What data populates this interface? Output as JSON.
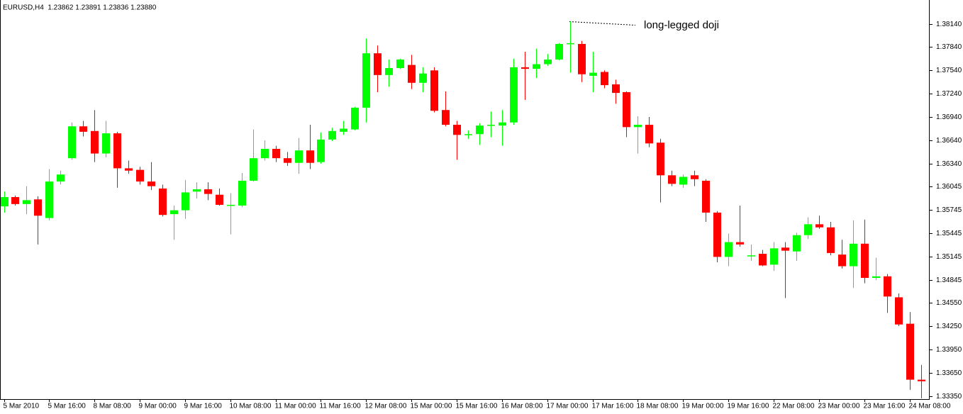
{
  "chart_data": {
    "type": "candlestick",
    "header": "EURUSD,H4  1.23862 1.23891 1.23836 1.23880",
    "annotation": "long-legged doji",
    "up_color": "#00ff00",
    "down_color": "#ff0000",
    "categories": [
      "5 Mar 2010",
      null,
      null,
      null,
      "5 Mar 16:00",
      null,
      null,
      null,
      "8 Mar 08:00",
      null,
      null,
      null,
      "9 Mar 00:00",
      null,
      null,
      null,
      "9 Mar 16:00",
      null,
      null,
      null,
      "10 Mar 08:00",
      null,
      null,
      null,
      "11 Mar 00:00",
      null,
      null,
      null,
      "11 Mar 16:00",
      null,
      null,
      null,
      "12 Mar 08:00",
      null,
      null,
      null,
      "15 Mar 00:00",
      null,
      null,
      null,
      "15 Mar 16:00",
      null,
      null,
      null,
      "16 Mar 08:00",
      null,
      null,
      null,
      "17 Mar 00:00",
      null,
      null,
      null,
      "17 Mar 16:00",
      null,
      null,
      null,
      "18 Mar 08:00",
      null,
      null,
      null,
      "19 Mar 00:00",
      null,
      null,
      null,
      "19 Mar 16:00",
      null,
      null,
      null,
      "22 Mar 08:00",
      null,
      null,
      null,
      "23 Mar 00:00",
      null,
      null,
      null,
      "23 Mar 16:00",
      null,
      null,
      null,
      "24 Mar 08:00",
      null
    ],
    "open": [
      1.3579,
      1.3591,
      1.3582,
      1.3588,
      1.3564,
      1.3611,
      1.3641,
      1.3682,
      1.3676,
      1.3647,
      1.3673,
      1.3628,
      1.3626,
      1.3611,
      1.3602,
      1.3569,
      1.3574,
      1.3598,
      1.3601,
      1.3594,
      1.358,
      1.358,
      1.3612,
      1.3641,
      1.3653,
      1.3641,
      1.3635,
      1.3651,
      1.3636,
      1.3665,
      1.3675,
      1.3678,
      1.3706,
      1.3776,
      1.3748,
      1.3757,
      1.3761,
      1.3738,
      1.3754,
      1.3703,
      1.3684,
      1.3671,
      1.3672,
      1.3683,
      1.3683,
      1.3687,
      1.3758,
      1.3756,
      1.3762,
      1.3768,
      1.3788,
      1.3788,
      1.3747,
      1.3752,
      1.3736,
      1.3726,
      1.3681,
      1.3684,
      1.3661,
      1.3619,
      1.3607,
      1.3619,
      1.3612,
      1.3571,
      1.3514,
      1.3533,
      1.3515,
      1.3518,
      1.3504,
      1.3526,
      1.3521,
      1.3542,
      1.3556,
      1.3552,
      1.3517,
      1.3502,
      1.3531,
      1.3487,
      1.3489,
      1.3462,
      1.3428,
      1.3356
    ],
    "high": [
      1.3598,
      1.3593,
      1.3605,
      1.3592,
      1.3627,
      1.3625,
      1.3687,
      1.3689,
      1.3703,
      1.3689,
      1.3675,
      1.3638,
      1.363,
      1.3636,
      1.3607,
      1.358,
      1.3613,
      1.361,
      1.361,
      1.3602,
      1.3596,
      1.3622,
      1.3678,
      1.3664,
      1.3657,
      1.3649,
      1.3667,
      1.3684,
      1.3674,
      1.368,
      1.3689,
      1.3707,
      1.3795,
      1.3786,
      1.3768,
      1.3769,
      1.3774,
      1.3758,
      1.3758,
      1.3727,
      1.3689,
      1.3677,
      1.3686,
      1.3701,
      1.3703,
      1.3769,
      1.3778,
      1.3782,
      1.3775,
      1.3789,
      1.3817,
      1.3792,
      1.3778,
      1.3754,
      1.3742,
      1.3727,
      1.3695,
      1.3694,
      1.3666,
      1.3625,
      1.362,
      1.3625,
      1.3614,
      1.3573,
      1.3544,
      1.358,
      1.353,
      1.3523,
      1.3533,
      1.3533,
      1.3545,
      1.3565,
      1.3567,
      1.3559,
      1.3536,
      1.3561,
      1.3562,
      1.3513,
      1.3492,
      1.3467,
      1.3443,
      1.3375
    ],
    "low": [
      1.3571,
      1.358,
      1.3569,
      1.353,
      1.3561,
      1.3607,
      1.3639,
      1.3669,
      1.3636,
      1.3642,
      1.3603,
      1.3621,
      1.3607,
      1.36,
      1.3566,
      1.3536,
      1.3563,
      1.3589,
      1.3587,
      1.358,
      1.3543,
      1.3578,
      1.3611,
      1.3638,
      1.3636,
      1.3631,
      1.3621,
      1.3627,
      1.3634,
      1.3663,
      1.3671,
      1.3677,
      1.3687,
      1.3726,
      1.3733,
      1.3756,
      1.373,
      1.3726,
      1.37,
      1.3682,
      1.3639,
      1.3666,
      1.3658,
      1.3668,
      1.3657,
      1.3684,
      1.3716,
      1.3744,
      1.376,
      1.3767,
      1.3751,
      1.3739,
      1.3726,
      1.3731,
      1.3711,
      1.3668,
      1.3647,
      1.3655,
      1.3584,
      1.3605,
      1.3603,
      1.3605,
      1.3559,
      1.3507,
      1.3502,
      1.3527,
      1.3509,
      1.3502,
      1.3496,
      1.3461,
      1.3509,
      1.3537,
      1.355,
      1.3516,
      1.3499,
      1.3474,
      1.348,
      1.3484,
      1.3442,
      1.3425,
      1.3343,
      1.3332
    ],
    "close": [
      1.3591,
      1.3582,
      1.3587,
      1.3567,
      1.3611,
      1.362,
      1.3682,
      1.3675,
      1.3647,
      1.3673,
      1.3628,
      1.3625,
      1.3611,
      1.3605,
      1.3568,
      1.3574,
      1.3597,
      1.3601,
      1.3595,
      1.3581,
      1.3581,
      1.3612,
      1.3641,
      1.3653,
      1.3641,
      1.3635,
      1.3651,
      1.3635,
      1.3665,
      1.3676,
      1.3679,
      1.3706,
      1.3776,
      1.3748,
      1.3757,
      1.3768,
      1.3738,
      1.375,
      1.3702,
      1.3684,
      1.3671,
      1.3672,
      1.3683,
      1.3684,
      1.3687,
      1.3758,
      1.3756,
      1.3762,
      1.3768,
      1.3788,
      1.3789,
      1.3749,
      1.3751,
      1.3735,
      1.3725,
      1.3681,
      1.3684,
      1.366,
      1.3619,
      1.3608,
      1.3617,
      1.3614,
      1.3571,
      1.3514,
      1.3533,
      1.353,
      1.3516,
      1.3503,
      1.3525,
      1.3522,
      1.3542,
      1.3556,
      1.3552,
      1.3519,
      1.3502,
      1.3531,
      1.3487,
      1.3489,
      1.3463,
      1.3427,
      1.3356,
      1.3354
    ],
    "ylim": [
      1.3331,
      1.384
    ],
    "yticks": [
      {
        "value": 1.3814,
        "label": "1.38140"
      },
      {
        "value": 1.3784,
        "label": "1.37840"
      },
      {
        "value": 1.3754,
        "label": "1.37540"
      },
      {
        "value": 1.3724,
        "label": "1.37240"
      },
      {
        "value": 1.3694,
        "label": "1.36940"
      },
      {
        "value": 1.3664,
        "label": "1.36640"
      },
      {
        "value": 1.3634,
        "label": "1.36340"
      },
      {
        "value": 1.36045,
        "label": "1.36045"
      },
      {
        "value": 1.35745,
        "label": "1.35745"
      },
      {
        "value": 1.35445,
        "label": "1.35445"
      },
      {
        "value": 1.35145,
        "label": "1.35145"
      },
      {
        "value": 1.34845,
        "label": "1.34845"
      },
      {
        "value": 1.3455,
        "label": "1.34550"
      },
      {
        "value": 1.3425,
        "label": "1.34250"
      },
      {
        "value": 1.3395,
        "label": "1.33950"
      },
      {
        "value": 1.3365,
        "label": "1.33650"
      },
      {
        "value": 1.3335,
        "label": "1.33350"
      }
    ]
  }
}
